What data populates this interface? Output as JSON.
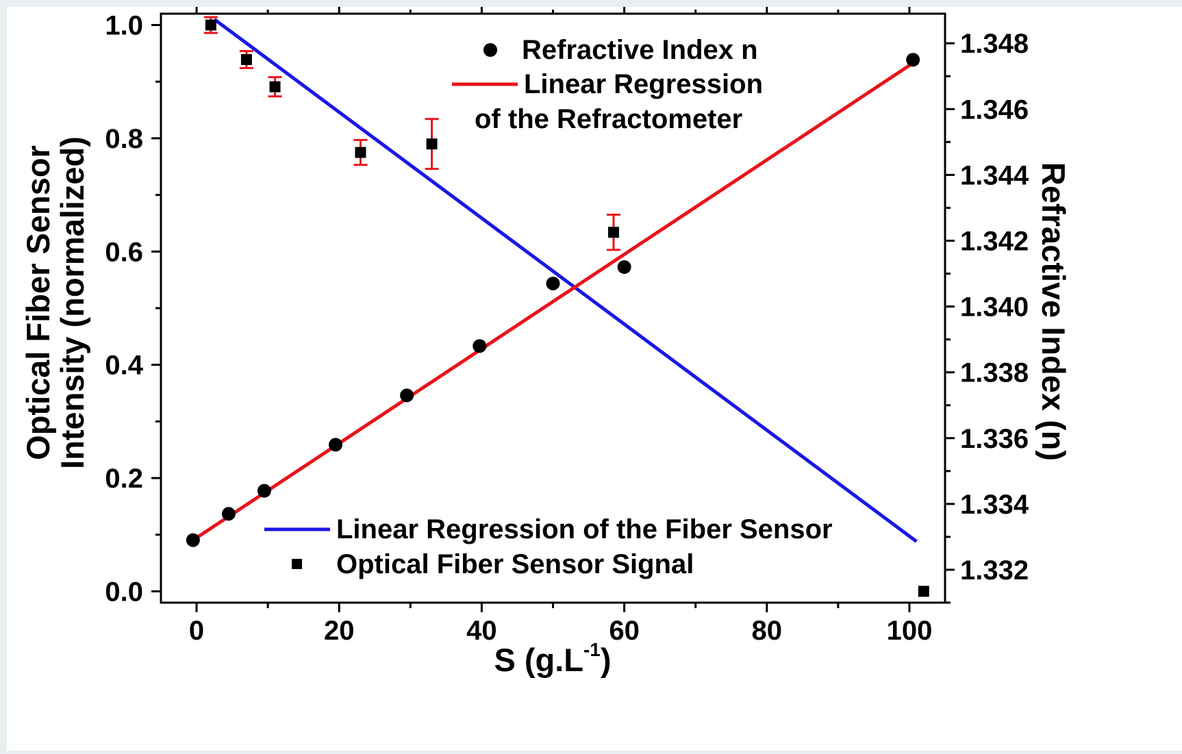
{
  "chart_data": {
    "type": "scatter",
    "x_axis": {
      "label_main": "S (g.L",
      "label_sup": "-1",
      "label_close": ")",
      "range": [
        -5,
        105
      ],
      "ticks": [
        0,
        20,
        40,
        60,
        80,
        100
      ],
      "tick_labels": [
        "0",
        "20",
        "40",
        "60",
        "80",
        "100"
      ]
    },
    "y_left": {
      "label_line1": "Optical Fiber Sensor",
      "label_line2": "Intensity (normalized)",
      "range": [
        -0.02,
        1.02
      ],
      "ticks": [
        0.0,
        0.2,
        0.4,
        0.6,
        0.8,
        1.0
      ],
      "tick_labels": [
        "0.0",
        "0.2",
        "0.4",
        "0.6",
        "0.8",
        "1.0"
      ]
    },
    "y_right": {
      "label": "Refractive Index (n)",
      "range": [
        1.331,
        1.3489
      ],
      "ticks": [
        1.332,
        1.334,
        1.336,
        1.338,
        1.34,
        1.342,
        1.344,
        1.346,
        1.348
      ],
      "tick_labels": [
        "1.332",
        "1.334",
        "1.336",
        "1.338",
        "1.340",
        "1.342",
        "1.344",
        "1.346",
        "1.348"
      ]
    },
    "series": [
      {
        "name": "Optical Fiber Sensor Signal",
        "axis": "left",
        "marker": "square",
        "color": "#000000",
        "error_color": "#e8141b",
        "x": [
          2,
          7,
          11,
          23,
          33,
          58.5,
          102
        ],
        "y": [
          1.0,
          0.939,
          0.891,
          0.775,
          0.79,
          0.634,
          0.0
        ],
        "err": [
          0.014,
          0.015,
          0.017,
          0.022,
          0.044,
          0.031,
          0
        ]
      },
      {
        "name": "Refractive Index n",
        "axis": "right",
        "marker": "circle",
        "color": "#000000",
        "x": [
          -0.5,
          4.5,
          9.5,
          19.5,
          29.5,
          39.7,
          50,
          60,
          100.5
        ],
        "y": [
          1.3329,
          1.3337,
          1.3344,
          1.3358,
          1.3373,
          1.3388,
          1.3407,
          1.3412,
          1.3475
        ]
      },
      {
        "name": "Linear Regression of the Fiber Sensor",
        "axis": "left",
        "type": "line",
        "color": "#1a17e6",
        "x": [
          2.5,
          101
        ],
        "y": [
          1.01,
          0.088
        ]
      },
      {
        "name": "Linear Regression of the Refractometer",
        "axis": "right",
        "type": "line",
        "color": "#e8141b",
        "x": [
          -0.5,
          100.5
        ],
        "y": [
          1.3329,
          1.3474
        ]
      }
    ],
    "legend_top": {
      "position": "top-center",
      "entries": [
        {
          "marker": "circle",
          "text": "Refractive Index n"
        },
        {
          "marker": "red-line",
          "text": "Linear Regression"
        },
        {
          "marker": "none",
          "text": "of the Refractometer"
        }
      ]
    },
    "legend_bottom": {
      "position": "bottom-center",
      "entries": [
        {
          "marker": "blue-line",
          "text": "Linear Regression of the Fiber Sensor"
        },
        {
          "marker": "square",
          "text": "Optical Fiber Sensor Signal"
        }
      ]
    },
    "grid": false
  }
}
